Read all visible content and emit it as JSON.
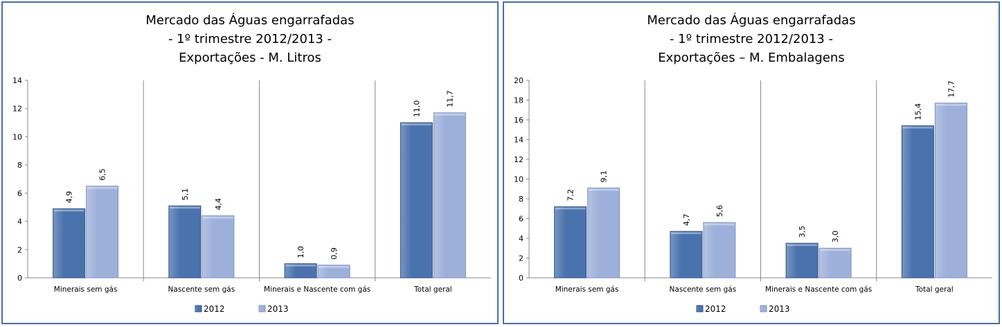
{
  "colors": {
    "border": "#4a6ea8",
    "series_2012": "#4a72ad",
    "series_2013": "#9db0da"
  },
  "chart_data": [
    {
      "type": "bar",
      "title": [
        "Mercado das Águas engarrafadas",
        "- 1º trimestre 2012/2013 -",
        "Exportações - M. Litros"
      ],
      "categories": [
        "Minerais sem gás",
        "Nascente sem gás",
        "Minerais e Nascente com gás",
        "Total geral"
      ],
      "series": [
        {
          "name": "2012",
          "values": [
            4.9,
            5.1,
            1.0,
            11.0
          ],
          "labels": [
            "4,9",
            "5,1",
            "1,0",
            "11,0"
          ]
        },
        {
          "name": "2013",
          "values": [
            6.5,
            4.4,
            0.9,
            11.7
          ],
          "labels": [
            "6,5",
            "4,4",
            "0,9",
            "11,7"
          ]
        }
      ],
      "ylim": [
        0,
        14
      ],
      "yticks": [
        "0",
        "2",
        "4",
        "6",
        "8",
        "10",
        "12",
        "14"
      ],
      "grid": false,
      "legend": "bottom"
    },
    {
      "type": "bar",
      "title": [
        "Mercado das Águas engarrafadas",
        "- 1º trimestre 2012/2013 -",
        "Exportações – M. Embalagens"
      ],
      "categories": [
        "Minerais sem gás",
        "Nascente sem gás",
        "Minerais e Nascente com gás",
        "Total geral"
      ],
      "series": [
        {
          "name": "2012",
          "values": [
            7.2,
            4.7,
            3.5,
            15.4
          ],
          "labels": [
            "7,2",
            "4,7",
            "3,5",
            "15,4"
          ]
        },
        {
          "name": "2013",
          "values": [
            9.1,
            5.6,
            3.0,
            17.7
          ],
          "labels": [
            "9,1",
            "5,6",
            "3,0",
            "17,7"
          ]
        }
      ],
      "ylim": [
        0,
        20
      ],
      "yticks": [
        "0",
        "2",
        "4",
        "6",
        "8",
        "10",
        "12",
        "14",
        "16",
        "18",
        "20"
      ],
      "grid": false,
      "legend": "bottom"
    }
  ]
}
